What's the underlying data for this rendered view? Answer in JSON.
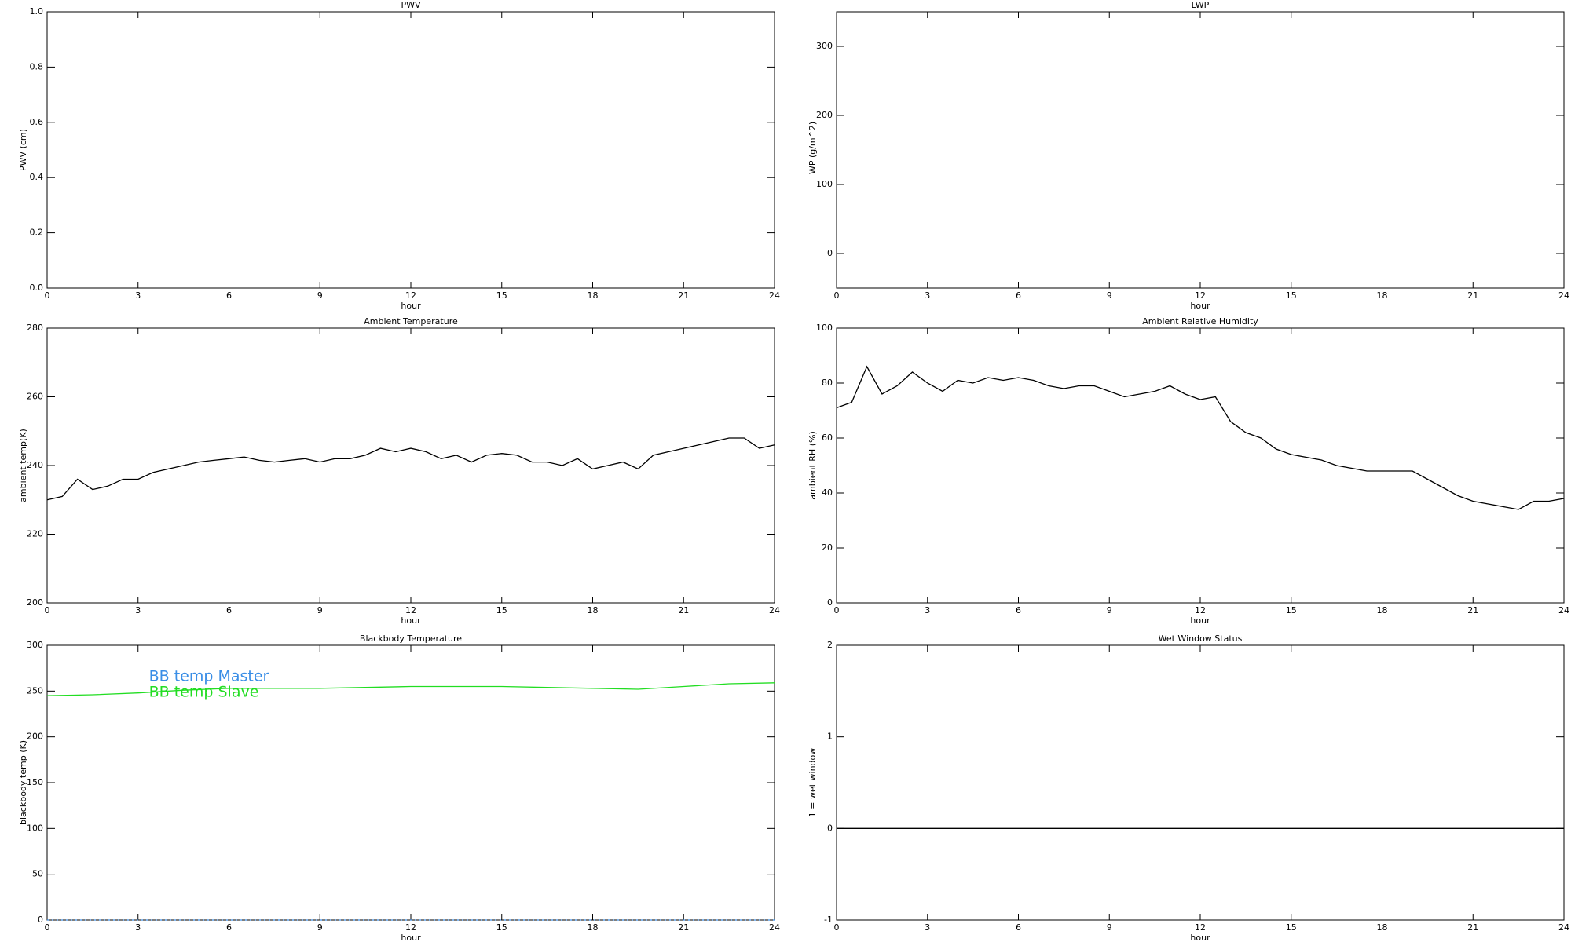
{
  "chart_data": [
    {
      "type": "line",
      "title": "PWV",
      "xlabel": "hour",
      "ylabel": "PWV (cm)",
      "xlim": [
        0,
        24
      ],
      "xticks": [
        0,
        3,
        6,
        9,
        12,
        15,
        18,
        21,
        24
      ],
      "ylim": [
        0,
        1
      ],
      "yticks": [
        {
          "value": 0,
          "label": "0.0"
        },
        0.2,
        0.4,
        0.6,
        0.8,
        {
          "value": 1,
          "label": "1.0"
        }
      ]
    },
    {
      "type": "line",
      "title": "LWP",
      "xlabel": "hour",
      "ylabel": "LWP (g/m^2)",
      "xlim": [
        0,
        24
      ],
      "xticks": [
        0,
        3,
        6,
        9,
        12,
        15,
        18,
        21,
        24
      ],
      "ylim": [
        -50,
        350
      ],
      "yticks": [
        0,
        100,
        200,
        300
      ]
    },
    {
      "type": "line",
      "title": "Ambient Temperature",
      "xlabel": "hour",
      "ylabel": "ambient temp(K)",
      "xlim": [
        0,
        24
      ],
      "xticks": [
        0,
        3,
        6,
        9,
        12,
        15,
        18,
        21,
        24
      ],
      "ylim": [
        200,
        280
      ],
      "yticks": [
        200,
        220,
        240,
        260,
        280
      ],
      "x": [
        0,
        0.5,
        1,
        1.5,
        2,
        2.5,
        3,
        3.5,
        4,
        4.5,
        5,
        5.5,
        6,
        6.5,
        7,
        7.5,
        8,
        8.5,
        9,
        9.5,
        10,
        10.5,
        11,
        11.5,
        12,
        12.5,
        13,
        13.5,
        14,
        14.5,
        15,
        15.5,
        16,
        16.5,
        17,
        17.5,
        18,
        18.5,
        19,
        19.5,
        20,
        20.5,
        21,
        21.5,
        22,
        22.5,
        23,
        23.5,
        24
      ],
      "series": [
        {
          "color": "#000000",
          "values": [
            230,
            231,
            236,
            233,
            234,
            236,
            236,
            238,
            239,
            240,
            241,
            241.5,
            242,
            242.5,
            241.5,
            241,
            241.5,
            242,
            241,
            242,
            242,
            243,
            245,
            244,
            245,
            244,
            242,
            243,
            241,
            243,
            243.5,
            243,
            241,
            241,
            240,
            242,
            239,
            240,
            241,
            239,
            243,
            244,
            245,
            246,
            247,
            248,
            248,
            245,
            246
          ]
        }
      ]
    },
    {
      "type": "line",
      "title": "Ambient Relative Humidity",
      "xlabel": "hour",
      "ylabel": "ambient RH (%)",
      "xlim": [
        0,
        24
      ],
      "xticks": [
        0,
        3,
        6,
        9,
        12,
        15,
        18,
        21,
        24
      ],
      "ylim": [
        0,
        100
      ],
      "yticks": [
        0,
        20,
        40,
        60,
        80,
        100
      ],
      "x": [
        0,
        0.5,
        1,
        1.5,
        2,
        2.5,
        3,
        3.5,
        4,
        4.5,
        5,
        5.5,
        6,
        6.5,
        7,
        7.5,
        8,
        8.5,
        9,
        9.5,
        10,
        10.5,
        11,
        11.5,
        12,
        12.5,
        13,
        13.5,
        14,
        14.5,
        15,
        15.5,
        16,
        16.5,
        17,
        17.5,
        18,
        18.5,
        19,
        19.5,
        20,
        20.5,
        21,
        21.5,
        22,
        22.5,
        23,
        23.5,
        24
      ],
      "series": [
        {
          "color": "#000000",
          "values": [
            71,
            73,
            86,
            76,
            79,
            84,
            80,
            77,
            81,
            80,
            82,
            81,
            82,
            81,
            79,
            78,
            79,
            79,
            77,
            75,
            76,
            77,
            79,
            76,
            74,
            75,
            66,
            62,
            60,
            56,
            54,
            53,
            52,
            50,
            49,
            48,
            48,
            48,
            48,
            45,
            42,
            39,
            37,
            36,
            35,
            34,
            37,
            37,
            38
          ]
        }
      ]
    },
    {
      "type": "line",
      "title": "Blackbody Temperature",
      "xlabel": "hour",
      "ylabel": "blackbody temp (K)",
      "xlim": [
        0,
        24
      ],
      "xticks": [
        0,
        3,
        6,
        9,
        12,
        15,
        18,
        21,
        24
      ],
      "ylim": [
        0,
        300
      ],
      "yticks": [
        0,
        50,
        100,
        150,
        200,
        250,
        300
      ],
      "legend": "upper-left",
      "x": [
        0,
        1.5,
        3,
        4.5,
        6,
        7.5,
        9,
        10.5,
        12,
        13.5,
        15,
        16.5,
        18,
        19.5,
        21,
        22.5,
        24
      ],
      "series": [
        {
          "name": "BB temp Master",
          "color": "#3a8ee6",
          "values": [
            0,
            0,
            0,
            0,
            0,
            0,
            0,
            0,
            0,
            0,
            0,
            0,
            0,
            0,
            0,
            0,
            0
          ]
        },
        {
          "name": "BB temp Slave",
          "color": "#22dd22",
          "values": [
            245,
            246,
            248,
            251,
            253,
            253,
            253,
            254,
            255,
            255,
            255,
            254,
            253,
            252,
            255,
            258,
            259
          ]
        }
      ]
    },
    {
      "type": "line",
      "title": "Wet Window Status",
      "xlabel": "hour",
      "ylabel": "1 = wet window",
      "xlim": [
        0,
        24
      ],
      "xticks": [
        0,
        3,
        6,
        9,
        12,
        15,
        18,
        21,
        24
      ],
      "ylim": [
        -1,
        2
      ],
      "yticks": [
        -1,
        0,
        1,
        2
      ],
      "x": [
        0,
        24
      ],
      "series": [
        {
          "color": "#000000",
          "values": [
            0,
            0
          ]
        }
      ]
    }
  ]
}
